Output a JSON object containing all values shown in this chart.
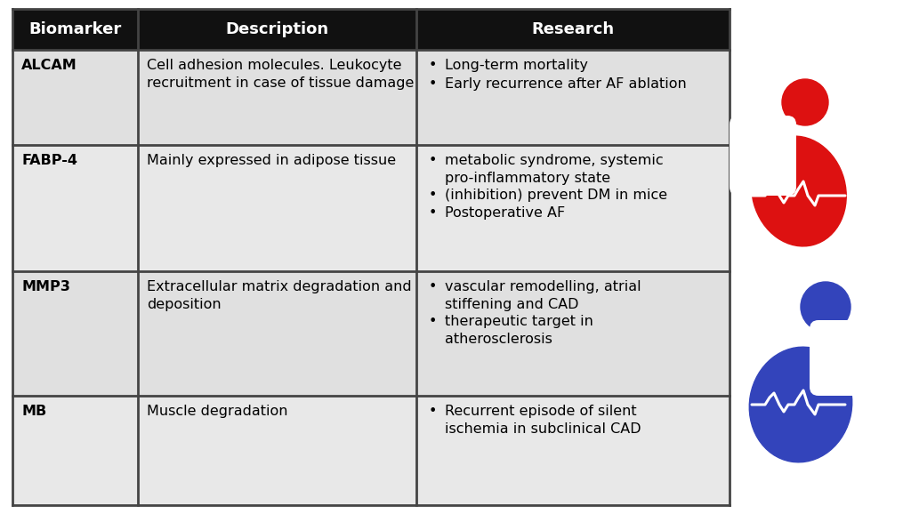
{
  "header": [
    "Biomarker",
    "Description",
    "Research"
  ],
  "rows": [
    {
      "biomarker": "ALCAM",
      "description": "Cell adhesion molecules. Leukocyte\nrecruitment in case of tissue damage",
      "research_lines": [
        {
          "bullet": true,
          "text": "Long-term mortality"
        },
        {
          "bullet": true,
          "text": "Early recurrence after AF ablation"
        }
      ]
    },
    {
      "biomarker": "FABP-4",
      "description": "Mainly expressed in adipose tissue",
      "research_lines": [
        {
          "bullet": true,
          "text": "metabolic syndrome, systemic\npro-inflammatory state"
        },
        {
          "bullet": true,
          "text": "(inhibition) prevent DM in mice"
        },
        {
          "bullet": true,
          "text": "Postoperative AF"
        }
      ]
    },
    {
      "biomarker": "MMP3",
      "description": "Extracellular matrix degradation and\ndeposition",
      "research_lines": [
        {
          "bullet": true,
          "text": "vascular remodelling, atrial\nstiffening and CAD"
        },
        {
          "bullet": true,
          "text": "therapeutic target in\natherosclerosis"
        }
      ]
    },
    {
      "biomarker": "MB",
      "description": "Muscle degradation",
      "research_lines": [
        {
          "bullet": true,
          "text": "Recurrent episode of silent\nischemia in subclinical CAD"
        }
      ]
    }
  ],
  "header_bg": "#111111",
  "header_fg": "#ffffff",
  "row_bg": [
    "#e0e0e0",
    "#e8e8e8",
    "#e0e0e0",
    "#e8e8e8"
  ],
  "border_color": "#444444",
  "red_color": "#dd1111",
  "blue_color": "#3344bb",
  "figsize": [
    10.24,
    5.78
  ],
  "dpi": 100
}
